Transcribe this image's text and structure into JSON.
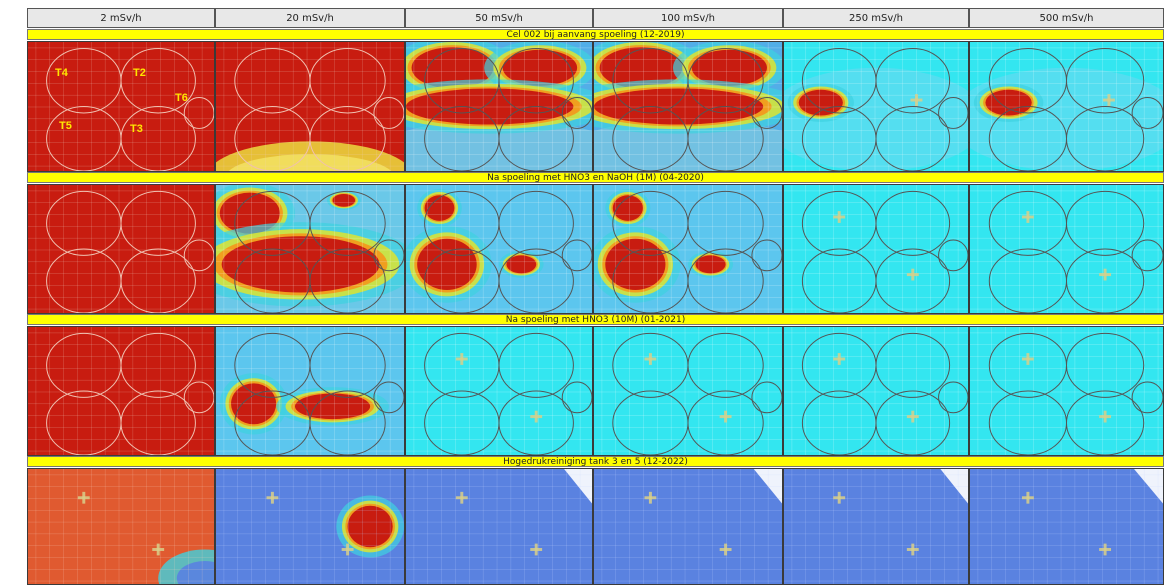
{
  "columns": [
    "2 mSv/h",
    "20 mSv/h",
    "50 mSv/h",
    "100 mSv/h",
    "250 mSv/h",
    "500 mSv/h"
  ],
  "rows": [
    {
      "title": "Cel 002 bij aanvang spoeling (12-2019)",
      "maps": [
        "red",
        "hot-low",
        "hot-mid",
        "hot-mid2",
        "cool-spot",
        "cool-spot"
      ]
    },
    {
      "title": "Na spoeling met HNO3 en NaOH (1M) (04-2020)",
      "maps": [
        "red",
        "hot-partial",
        "spots",
        "spots",
        "cyan",
        "cyan"
      ]
    },
    {
      "title": "Na spoeling met HNO3 (10M) (01-2021)",
      "maps": [
        "red",
        "hot-small",
        "cyan",
        "cyan",
        "cyan",
        "cyan"
      ]
    },
    {
      "title": "Hogedrukreiniging tank 3 en 5 (12-2022)",
      "maps": [
        "orange",
        "blue-spot",
        "blue",
        "blue",
        "blue",
        "blue"
      ]
    }
  ],
  "tank_labels": [
    "T4",
    "T2",
    "T6",
    "T5",
    "T3"
  ],
  "colors": {
    "band": "#ffff00",
    "hot": "#c81c10",
    "cyan": "#33e6f0",
    "blue": "#5a82e0",
    "orange": "#e05a30"
  }
}
